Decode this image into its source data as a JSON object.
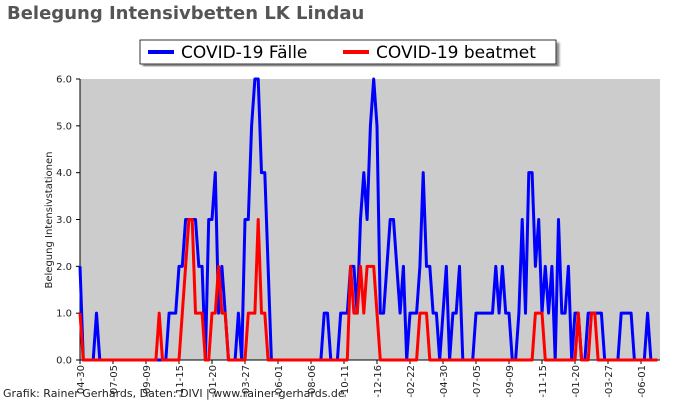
{
  "chart_data": {
    "type": "line",
    "title": "Belegung Intensivbetten LK Lindau",
    "ylabel": "Belegung Intensivstationen",
    "footer": "Grafik: Rainer Gerhards, Daten: DIVI | www.rainer-gerhards.de",
    "background": "#cccccc",
    "legend": "top",
    "categories": [
      "04-30",
      null,
      null,
      null,
      null,
      null,
      null,
      null,
      null,
      null,
      "-07-05",
      null,
      null,
      null,
      null,
      null,
      null,
      null,
      null,
      null,
      "-09-09",
      null,
      null,
      null,
      null,
      null,
      null,
      null,
      null,
      null,
      "-11-15",
      null,
      null,
      null,
      null,
      null,
      null,
      null,
      null,
      null,
      "-01-20",
      null,
      null,
      null,
      null,
      null,
      null,
      null,
      null,
      null,
      "-03-27",
      null,
      null,
      null,
      null,
      null,
      null,
      null,
      null,
      null,
      "-06-01",
      null,
      null,
      null,
      null,
      null,
      null,
      null,
      null,
      null,
      "-08-06",
      null,
      null,
      null,
      null,
      null,
      null,
      null,
      null,
      null,
      "-10-11",
      null,
      null,
      null,
      null,
      null,
      null,
      null,
      null,
      null,
      "-12-16",
      null,
      null,
      null,
      null,
      null,
      null,
      null,
      null,
      null,
      "-02-22",
      null,
      null,
      null,
      null,
      null,
      null,
      null,
      null,
      null,
      "-04-30",
      null,
      null,
      null,
      null,
      null,
      null,
      null,
      null,
      null,
      "-07-05",
      null,
      null,
      null,
      null,
      null,
      null,
      null,
      null,
      null,
      "-09-09",
      null,
      null,
      null,
      null,
      null,
      null,
      null,
      null,
      null,
      "-11-15",
      null,
      null,
      null,
      null,
      null,
      null,
      null,
      null,
      null,
      "-01-20",
      null,
      null,
      null,
      null,
      null,
      null,
      null,
      null,
      null,
      "-03-27",
      null,
      null,
      null,
      null,
      null,
      null,
      null,
      null,
      null,
      "-06-01",
      null,
      null,
      null,
      null,
      null
    ],
    "series": [
      {
        "name": "COVID-19 Fälle",
        "color": "#0000ff",
        "values": [
          2,
          0,
          0,
          0,
          0,
          1,
          0,
          0,
          0,
          0,
          0,
          0,
          0,
          0,
          0,
          0,
          0,
          0,
          0,
          0,
          0,
          0,
          0,
          0,
          0,
          0,
          0,
          1,
          1,
          1,
          2,
          2,
          3,
          3,
          3,
          3,
          2,
          2,
          0,
          3,
          3,
          4,
          1,
          2,
          1,
          0,
          0,
          0,
          1,
          0,
          3,
          3,
          5,
          6,
          6,
          4,
          4,
          2,
          0,
          0,
          0,
          0,
          0,
          0,
          0,
          0,
          0,
          0,
          0,
          0,
          0,
          0,
          0,
          0,
          1,
          1,
          0,
          0,
          0,
          1,
          1,
          1,
          2,
          2,
          1,
          3,
          4,
          3,
          5,
          6,
          5,
          1,
          1,
          2,
          3,
          3,
          2,
          1,
          2,
          0,
          1,
          1,
          1,
          2,
          4,
          2,
          2,
          1,
          1,
          0,
          1,
          2,
          0,
          1,
          1,
          2,
          0,
          0,
          0,
          0,
          1,
          1,
          1,
          1,
          1,
          1,
          2,
          1,
          2,
          1,
          1,
          0,
          0,
          1,
          3,
          1,
          4,
          4,
          2,
          3,
          1,
          2,
          1,
          2,
          0,
          3,
          1,
          1,
          2,
          0,
          1,
          1,
          0,
          0,
          1,
          1,
          1,
          1,
          1,
          0,
          0,
          0,
          0,
          0,
          1,
          1,
          1,
          1,
          0,
          0,
          0,
          0,
          1,
          0,
          0,
          0
        ]
      },
      {
        "name": "COVID-19 beatmet",
        "color": "#ff0000",
        "values": [
          1,
          0,
          0,
          0,
          0,
          0,
          0,
          0,
          0,
          0,
          0,
          0,
          0,
          0,
          0,
          0,
          0,
          0,
          0,
          0,
          0,
          0,
          0,
          0,
          1,
          0,
          0,
          0,
          0,
          0,
          0,
          1,
          2,
          3,
          3,
          1,
          1,
          1,
          0,
          0,
          1,
          1,
          2,
          1,
          1,
          0,
          0,
          0,
          0,
          0,
          0,
          1,
          1,
          1,
          3,
          1,
          1,
          0,
          0,
          0,
          0,
          0,
          0,
          0,
          0,
          0,
          0,
          0,
          0,
          0,
          0,
          0,
          0,
          0,
          0,
          0,
          0,
          0,
          0,
          0,
          0,
          0,
          2,
          1,
          1,
          2,
          1,
          2,
          2,
          2,
          1,
          0,
          0,
          0,
          0,
          0,
          0,
          0,
          0,
          0,
          0,
          0,
          0,
          1,
          1,
          1,
          0,
          0,
          0,
          0,
          0,
          0,
          0,
          0,
          0,
          0,
          0,
          0,
          0,
          0,
          0,
          0,
          0,
          0,
          0,
          0,
          0,
          0,
          0,
          0,
          0,
          0,
          0,
          0,
          0,
          0,
          0,
          0,
          1,
          1,
          1,
          0,
          0,
          0,
          0,
          0,
          0,
          0,
          0,
          0,
          0,
          1,
          0,
          0,
          0,
          1,
          1,
          0,
          0,
          0,
          0,
          0,
          0,
          0,
          0,
          0,
          0,
          0,
          0,
          0,
          0,
          0,
          0,
          0,
          0,
          0
        ]
      }
    ],
    "ylim": [
      0,
      6
    ],
    "yticks": [
      {
        "value": 0,
        "label": "0.0"
      },
      {
        "value": 1,
        "label": "1.0"
      },
      {
        "value": 2,
        "label": "2.0"
      },
      {
        "value": 3,
        "label": "3.0"
      },
      {
        "value": 4,
        "label": "4.0"
      },
      {
        "value": 5,
        "label": "5.0"
      },
      {
        "value": 6,
        "label": "6.0"
      }
    ]
  }
}
